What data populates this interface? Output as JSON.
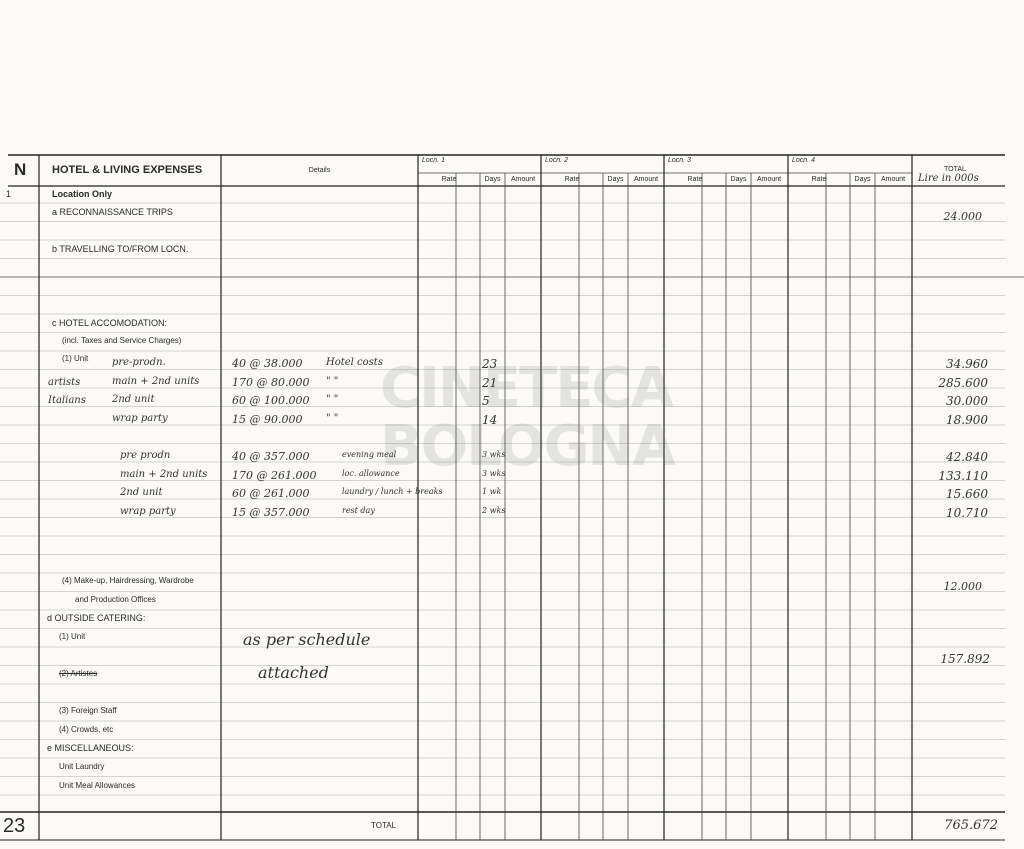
{
  "section_letter": "N",
  "title": "HOTEL & LIVING EXPENSES",
  "columns": {
    "details": "Details",
    "locations": [
      "Locn. 1",
      "Locn. 2",
      "Locn. 3",
      "Locn. 4"
    ],
    "sub": {
      "rate": "Rate",
      "days": "Days",
      "amount": "Amount"
    },
    "total": "TOTAL",
    "total_note": "Lire in 000s"
  },
  "item_number": "1",
  "labels": {
    "location_only": "Location Only",
    "a": "a  RECONNAISSANCE TRIPS",
    "b": "b  TRAVELLING TO/FROM LOCN.",
    "c": "c  HOTEL ACCOMODATION:",
    "c_note": "(incl. Taxes and Service Charges)",
    "c1": "(1) Unit",
    "c4a": "(4) Make-up, Hairdressing, Wardrobe",
    "c4b": "and Production Offices",
    "d": "d  OUTSIDE CATERING:",
    "d1": "(1) Unit",
    "d2": "(2) Artistes",
    "d3": "(3) Foreign Staff",
    "d4": "(4) Crowds, etc",
    "e": "e  MISCELLANEOUS:",
    "e1": "Unit Laundry",
    "e2": "Unit Meal Allowances",
    "total_label": "TOTAL",
    "page_number": "23"
  },
  "handwritten": {
    "group_artists": "artists",
    "group_italians": "Italians",
    "hotel_rows": [
      {
        "item": "pre-prodn.",
        "detail": "40 @ 38.000",
        "note": "Hotel costs",
        "days": "23",
        "total": "34.960"
      },
      {
        "item": "main + 2nd units",
        "detail": "170 @ 80.000",
        "note": "\"   \"",
        "days": "21",
        "total": "285.600"
      },
      {
        "item": "2nd unit",
        "detail": "60 @ 100.000",
        "note": "\"   \"",
        "days": "5",
        "total": "30.000"
      },
      {
        "item": "wrap party",
        "detail": "15 @ 90.000",
        "note": "\"   \"",
        "days": "14",
        "total": "18.900"
      }
    ],
    "allowance_rows": [
      {
        "item": "pre prodn",
        "detail": "40 @ 357.000",
        "note": "evening meal",
        "days": "3 wks",
        "total": "42.840"
      },
      {
        "item": "main + 2nd units",
        "detail": "170 @ 261.000",
        "note": "loc. allowance",
        "days": "3 wks",
        "total": "133.110"
      },
      {
        "item": "2nd unit",
        "detail": "60 @ 261.000",
        "note": "laundry / lunch + breaks",
        "days": "1 wk",
        "total": "15.660"
      },
      {
        "item": "wrap party",
        "detail": "15 @ 357.000",
        "note": "rest day",
        "days": "2 wks",
        "total": "10.710"
      }
    ],
    "reconnaissance_total": "24.000",
    "makeup_total": "12.000",
    "catering_note_1": "as per schedule",
    "catering_note_2": "attached",
    "catering_total": "157.892",
    "grand_total": "765.672"
  },
  "watermark": "CINETECA BOLOGNA"
}
